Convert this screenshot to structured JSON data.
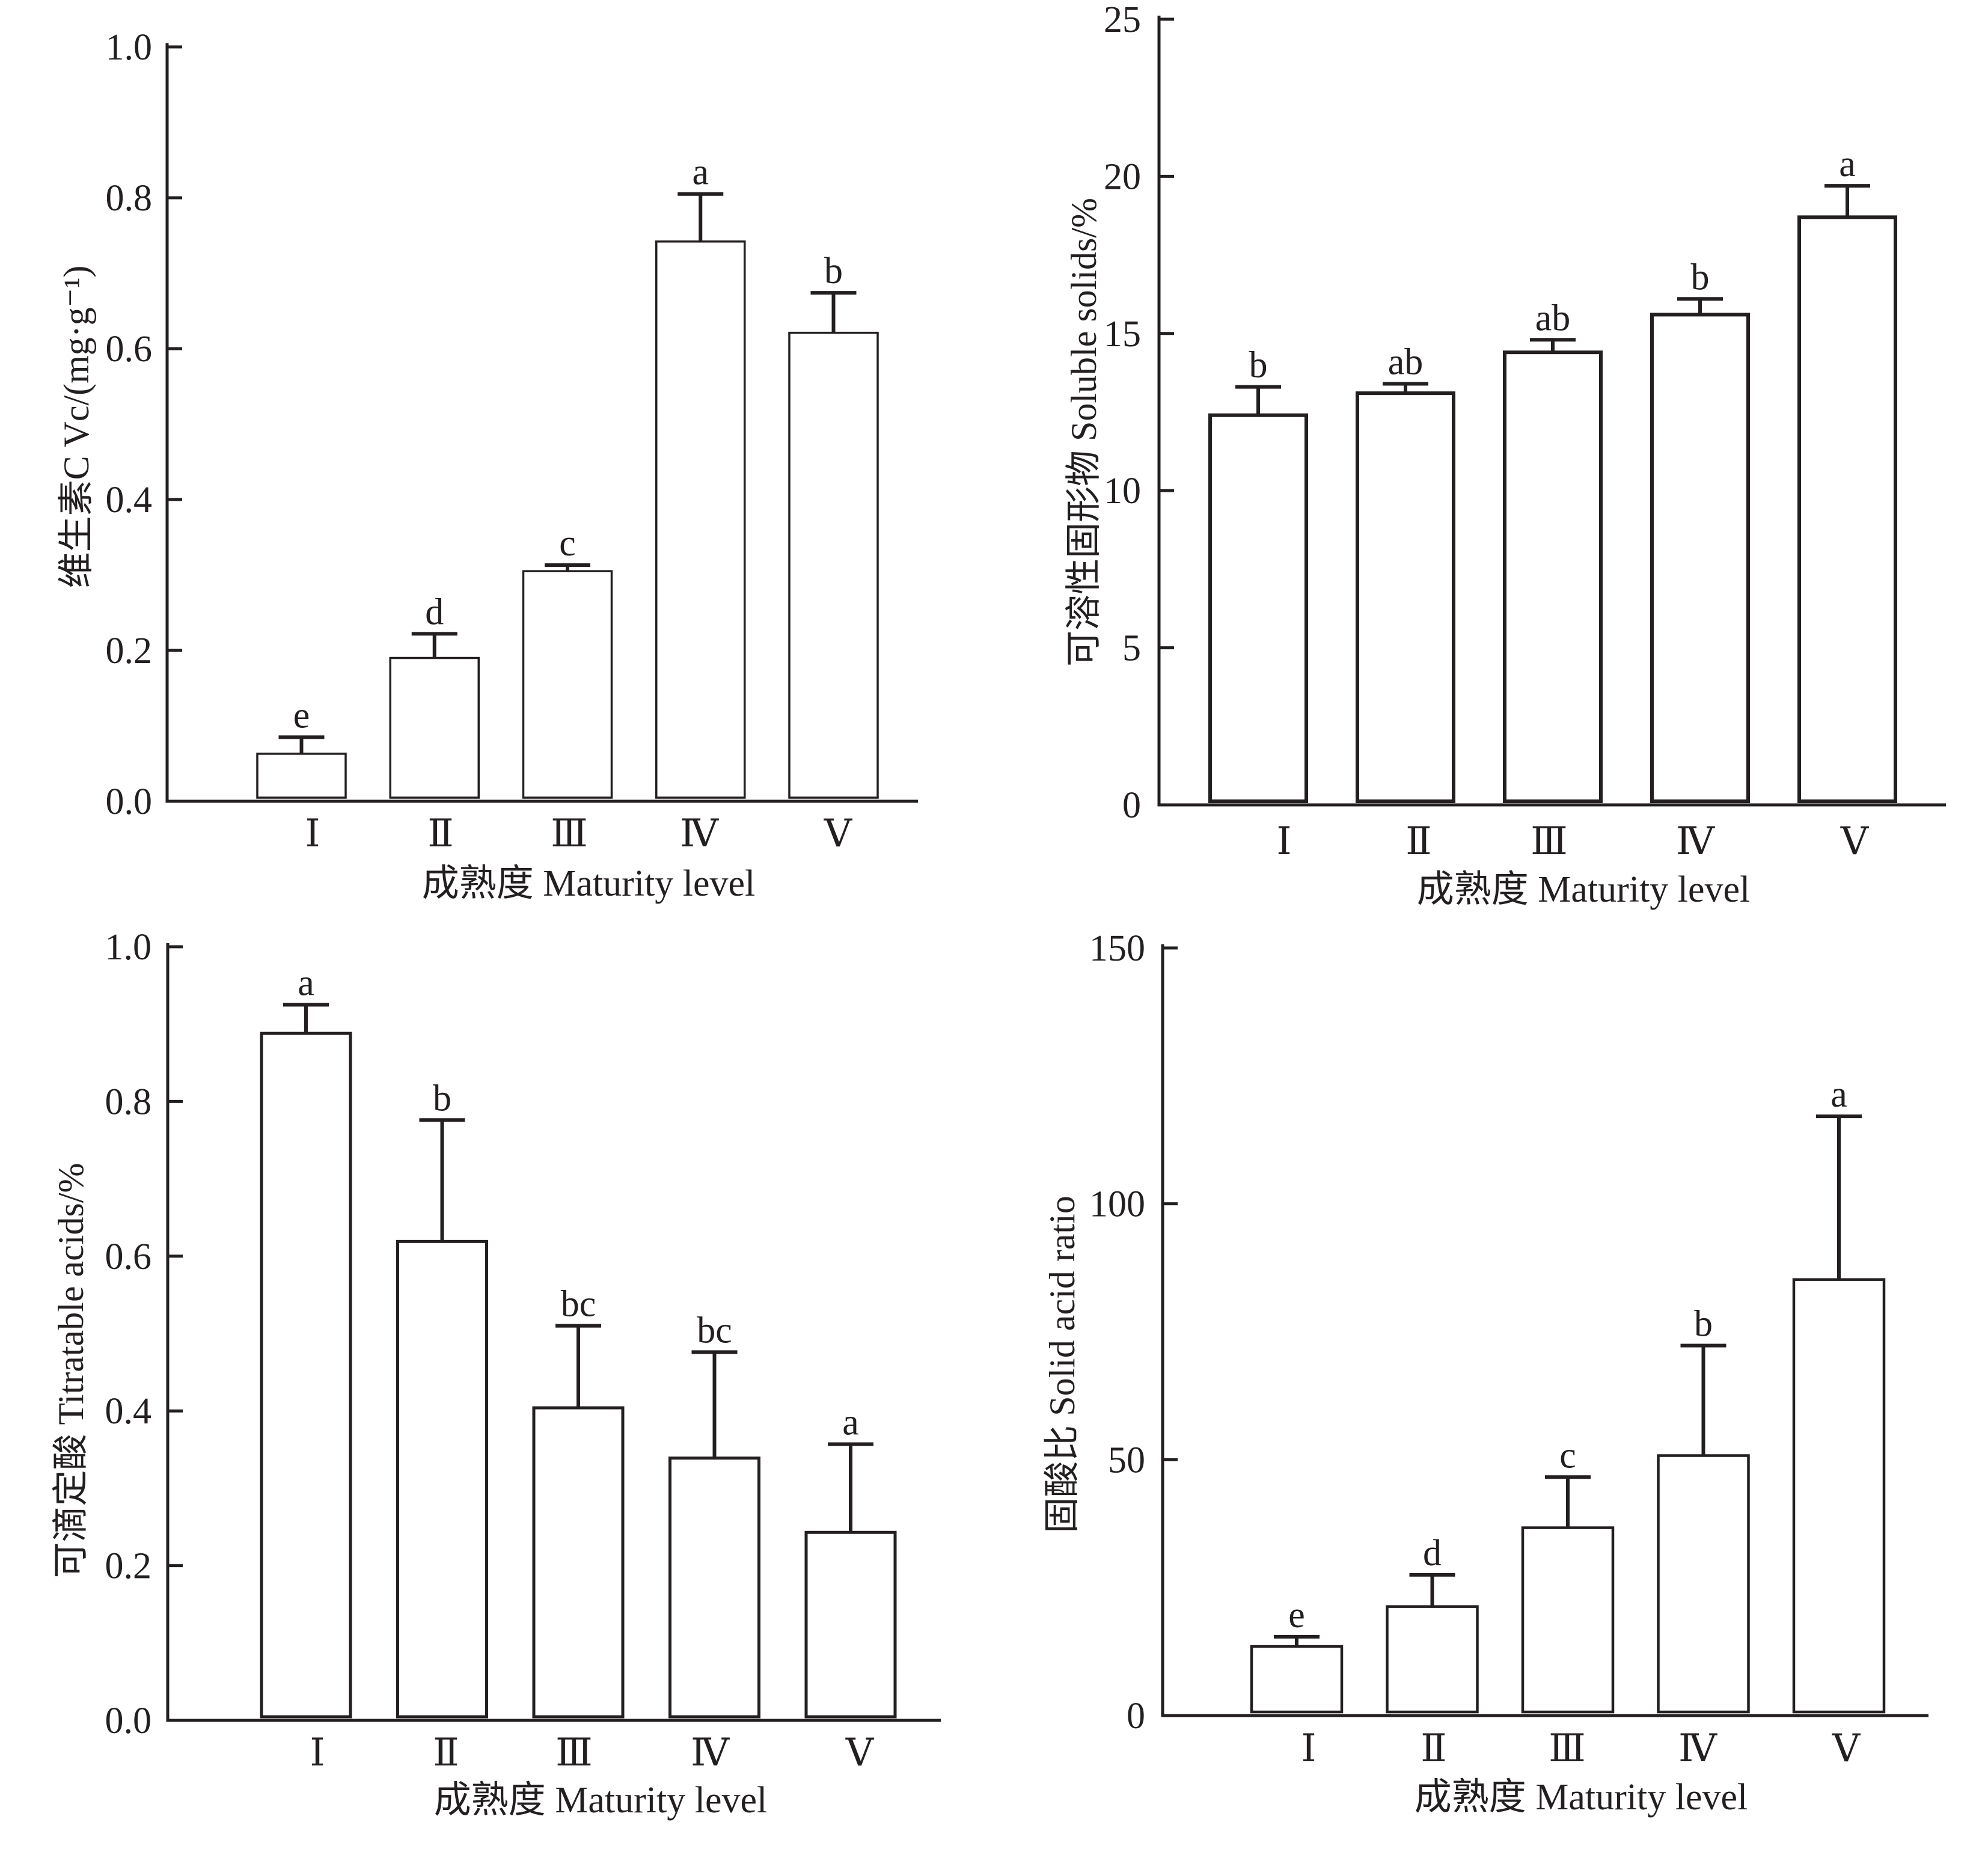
{
  "colors": {
    "background": "#ffffff",
    "ink": "#231f20",
    "bar_fill": "#ffffff"
  },
  "chart_data": [
    {
      "type": "bar",
      "title": "",
      "xlabel": "成熟度 Maturity level",
      "ylabel": "维生素C  Vc/(mg·g⁻¹)",
      "categories": [
        "Ⅰ",
        "Ⅱ",
        "Ⅲ",
        "Ⅳ",
        "Ⅴ"
      ],
      "values": [
        0.063,
        0.19,
        0.305,
        0.742,
        0.621
      ],
      "error_upper": [
        0.022,
        0.032,
        0.008,
        0.063,
        0.053
      ],
      "significance_letters": [
        "e",
        "d",
        "c",
        "a",
        "b"
      ],
      "ylim": [
        0,
        1.0
      ],
      "yticks": [
        0,
        0.2,
        0.4,
        0.6,
        0.8,
        1.0
      ],
      "ytick_labels": [
        "0.0",
        "0.2",
        "0.4",
        "0.6",
        "0.8",
        "1.0"
      ],
      "grid": false,
      "legend": null
    },
    {
      "type": "bar",
      "title": "",
      "xlabel": "成熟度 Maturity level",
      "ylabel": "可溶性固形物  Soluble solids/%",
      "categories": [
        "Ⅰ",
        "Ⅱ",
        "Ⅲ",
        "Ⅳ",
        "Ⅴ"
      ],
      "values": [
        12.4,
        13.1,
        14.4,
        15.6,
        18.7
      ],
      "error_upper": [
        0.9,
        0.3,
        0.4,
        0.5,
        1.0
      ],
      "significance_letters": [
        "b",
        "ab",
        "ab",
        "b",
        "a"
      ],
      "ylim": [
        0,
        25
      ],
      "yticks": [
        0,
        5,
        10,
        15,
        20,
        25
      ],
      "ytick_labels": [
        "0",
        "5",
        "10",
        "15",
        "20",
        "25"
      ],
      "grid": false,
      "legend": null
    },
    {
      "type": "bar",
      "title": "",
      "xlabel": "成熟度 Maturity level",
      "ylabel": "可滴定酸  Titratable acids/%",
      "categories": [
        "Ⅰ",
        "Ⅱ",
        "Ⅲ",
        "Ⅳ",
        "Ⅴ"
      ],
      "values": [
        0.888,
        0.619,
        0.404,
        0.339,
        0.243
      ],
      "error_upper": [
        0.037,
        0.157,
        0.106,
        0.137,
        0.114
      ],
      "significance_letters": [
        "a",
        "b",
        "bc",
        "bc",
        "a"
      ],
      "ylim": [
        0,
        1.0
      ],
      "yticks": [
        0,
        0.2,
        0.4,
        0.6,
        0.8,
        1.0
      ],
      "ytick_labels": [
        "0.0",
        "0.2",
        "0.4",
        "0.6",
        "0.8",
        "1.0"
      ],
      "grid": false,
      "legend": null
    },
    {
      "type": "bar",
      "title": "",
      "xlabel": "成熟度 Maturity level",
      "ylabel": "固酸比  Solid acid ratio",
      "categories": [
        "Ⅰ",
        "Ⅱ",
        "Ⅲ",
        "Ⅳ",
        "Ⅴ"
      ],
      "values": [
        13.5,
        21.3,
        36.7,
        50.8,
        85.2
      ],
      "error_upper": [
        1.9,
        6.2,
        9.9,
        21.5,
        31.9
      ],
      "significance_letters": [
        "e",
        "d",
        "c",
        "b",
        "a"
      ],
      "ylim": [
        0,
        150
      ],
      "yticks": [
        0,
        50,
        100,
        150
      ],
      "ytick_labels": [
        "0",
        "50",
        "100",
        "150"
      ],
      "grid": false,
      "legend": null
    }
  ]
}
